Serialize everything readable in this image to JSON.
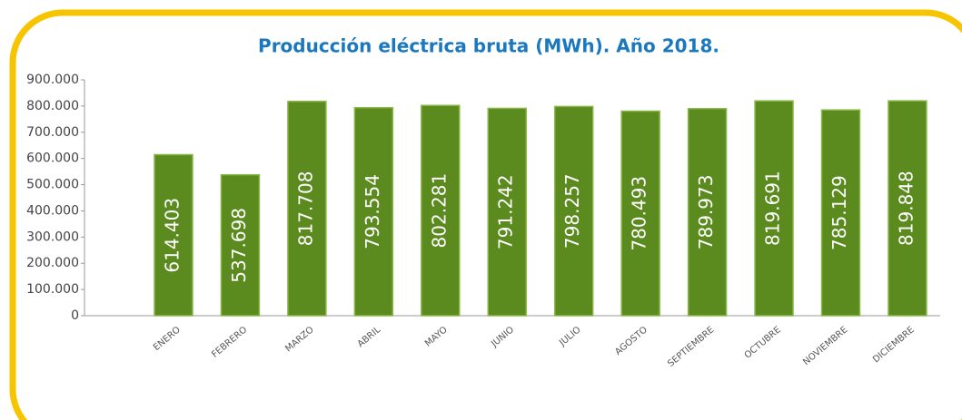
{
  "chart_data": {
    "type": "bar",
    "title": "Producción eléctrica bruta (MWh). Año 2018.",
    "categories": [
      "ENERO",
      "FEBRERO",
      "MARZO",
      "ABRIL",
      "MAYO",
      "JUNIO",
      "JULIO",
      "AGOSTO",
      "SEPTIEMBRE",
      "OCTUBRE",
      "NOVIEMBRE",
      "DICIEMBRE"
    ],
    "values": [
      614403,
      537698,
      817708,
      793554,
      802281,
      791242,
      798257,
      780493,
      789973,
      819691,
      785129,
      819848
    ],
    "value_labels": [
      "614.403",
      "537.698",
      "817.708",
      "793.554",
      "802.281",
      "791.242",
      "798.257",
      "780.493",
      "789.973",
      "819.691",
      "785.129",
      "819.848"
    ],
    "color": "#5b8a1f",
    "ylim": [
      0,
      900000
    ],
    "yticks": [
      0,
      {
        "value": 100000,
        "label": "100.000"
      },
      {
        "value": 200000,
        "label": "200.000"
      },
      {
        "value": 300000,
        "label": "300.000"
      },
      {
        "value": 400000,
        "label": "400.000"
      },
      {
        "value": 500000,
        "label": "500.000"
      },
      {
        "value": 600000,
        "label": "600.000"
      },
      {
        "value": 700000,
        "label": "700.000"
      },
      {
        "value": 800000,
        "label": "800.000"
      },
      {
        "value": 900000,
        "label": "900.000"
      }
    ],
    "grid": false
  }
}
